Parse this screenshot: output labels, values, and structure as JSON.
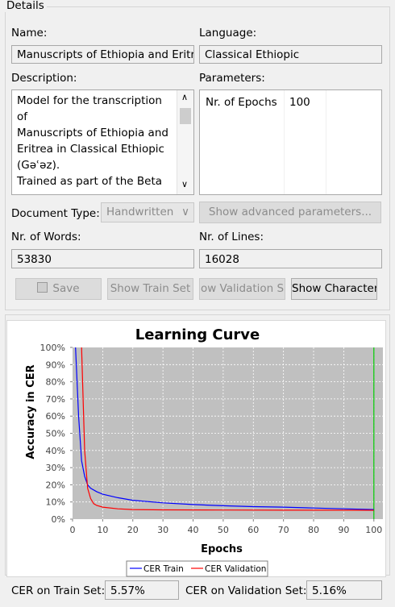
{
  "details": {
    "legend": "Details",
    "name_label": "Name:",
    "name_value": "Manuscripts of Ethiopia and Eritre",
    "language_label": "Language:",
    "language_value": "Classical Ethiopic",
    "description_label": "Description:",
    "description_lines": [
      "Model for the transcription",
      "of",
      "Manuscripts of Ethiopia and",
      "Eritrea in Classical Ethiopic",
      "(Gəʿəz).",
      "Trained as part of the Beta"
    ],
    "parameters_label": "Parameters:",
    "parameters": [
      {
        "key": "Nr. of Epochs",
        "value": "100"
      }
    ],
    "document_type_label": "Document Type:",
    "document_type_value": "Handwritten",
    "show_advanced_label": "Show advanced parameters...",
    "words_label": "Nr. of Words:",
    "words_value": "53830",
    "lines_label": "Nr. of Lines:",
    "lines_value": "16028",
    "buttons": {
      "save": "Save",
      "show_train": "Show Train Set",
      "show_validation": "ow Validation S",
      "show_characters": "Show Characters"
    }
  },
  "chart_data": {
    "type": "line",
    "title": "Learning Curve",
    "xlabel": "Epochs",
    "ylabel": "Accuracy in CER",
    "xlim": [
      0,
      103
    ],
    "ylim": [
      0,
      100
    ],
    "x_ticks": [
      0,
      10,
      20,
      30,
      40,
      50,
      60,
      70,
      80,
      90,
      100
    ],
    "y_ticks": [
      "0%",
      "10%",
      "20%",
      "30%",
      "40%",
      "50%",
      "60%",
      "70%",
      "80%",
      "90%",
      "100%"
    ],
    "grid": true,
    "legend_position": "bottom",
    "marker_x": 100,
    "series": [
      {
        "name": "CER Train",
        "color": "#0000ff",
        "x": [
          1,
          2,
          3,
          4,
          5,
          6,
          8,
          10,
          15,
          20,
          30,
          40,
          50,
          60,
          70,
          80,
          90,
          100
        ],
        "y": [
          100,
          60,
          34,
          25,
          20,
          18,
          16,
          14.5,
          12.5,
          11,
          9.5,
          8.5,
          7.8,
          7.3,
          7,
          6.5,
          6,
          5.57
        ]
      },
      {
        "name": "CER Validation",
        "color": "#ff0000",
        "x": [
          3,
          4,
          5,
          6,
          7,
          8,
          10,
          15,
          20,
          30,
          50,
          70,
          90,
          100
        ],
        "y": [
          100,
          40,
          18,
          12,
          9,
          8,
          7,
          6,
          5.6,
          5.4,
          5.3,
          5.2,
          5.2,
          5.16
        ]
      }
    ]
  },
  "footer": {
    "train_label": "CER on Train Set:",
    "train_value": "5.57%",
    "val_label": "CER on Validation Set:",
    "val_value": "5.16%"
  }
}
